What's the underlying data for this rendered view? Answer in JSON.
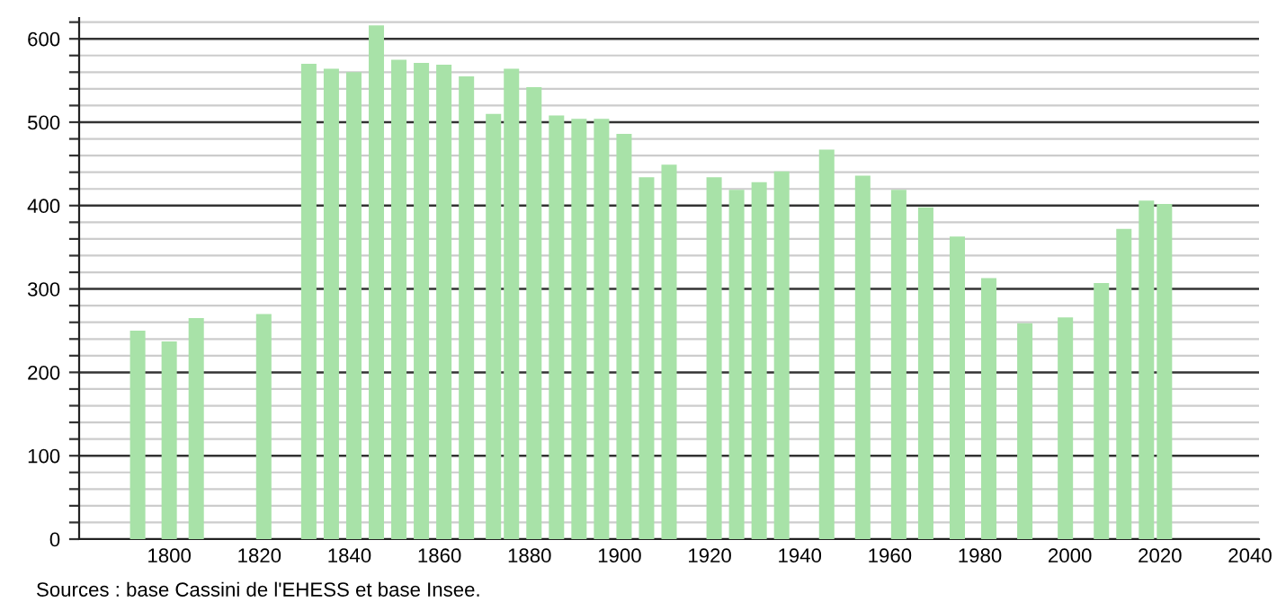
{
  "chart_data": {
    "type": "bar",
    "color": "#a8e2a8",
    "x": [
      1793,
      1800,
      1806,
      1821,
      1831,
      1836,
      1841,
      1846,
      1851,
      1856,
      1861,
      1866,
      1872,
      1876,
      1881,
      1886,
      1891,
      1896,
      1901,
      1906,
      1911,
      1921,
      1926,
      1931,
      1936,
      1946,
      1954,
      1962,
      1968,
      1975,
      1982,
      1990,
      1999,
      2007,
      2012,
      2017,
      2021
    ],
    "values": [
      250,
      237,
      265,
      270,
      570,
      564,
      560,
      616,
      575,
      571,
      569,
      555,
      510,
      564,
      542,
      508,
      504,
      504,
      486,
      434,
      449,
      434,
      419,
      428,
      441,
      467,
      436,
      419,
      398,
      363,
      313,
      259,
      266,
      307,
      372,
      406,
      402
    ],
    "xlim": [
      1780,
      2042
    ],
    "xticks": [
      1800,
      1820,
      1840,
      1860,
      1880,
      1900,
      1920,
      1940,
      1960,
      1980,
      2000,
      2020,
      2040
    ],
    "ylim": [
      0,
      625
    ],
    "yticks": [
      0,
      {
        "value": 20,
        "label": null
      },
      {
        "value": 40,
        "label": null
      },
      {
        "value": 60,
        "label": null
      },
      {
        "value": 80,
        "label": null
      },
      100,
      {
        "value": 120,
        "label": null
      },
      {
        "value": 140,
        "label": null
      },
      {
        "value": 160,
        "label": null
      },
      {
        "value": 180,
        "label": null
      },
      200,
      {
        "value": 220,
        "label": null
      },
      {
        "value": 240,
        "label": null
      },
      {
        "value": 260,
        "label": null
      },
      {
        "value": 280,
        "label": null
      },
      300,
      {
        "value": 320,
        "label": null
      },
      {
        "value": 340,
        "label": null
      },
      {
        "value": 360,
        "label": null
      },
      {
        "value": 380,
        "label": null
      },
      400,
      {
        "value": 420,
        "label": null
      },
      {
        "value": 440,
        "label": null
      },
      {
        "value": 460,
        "label": null
      },
      {
        "value": 480,
        "label": null
      },
      500,
      {
        "value": 520,
        "label": null
      },
      {
        "value": 540,
        "label": null
      },
      {
        "value": 560,
        "label": null
      },
      {
        "value": 580,
        "label": null
      },
      600,
      {
        "value": 620,
        "label": null
      }
    ],
    "grid": "y",
    "legend": false,
    "annotations": [
      "Sources : base Cassini de l'EHESS et base Insee."
    ]
  }
}
